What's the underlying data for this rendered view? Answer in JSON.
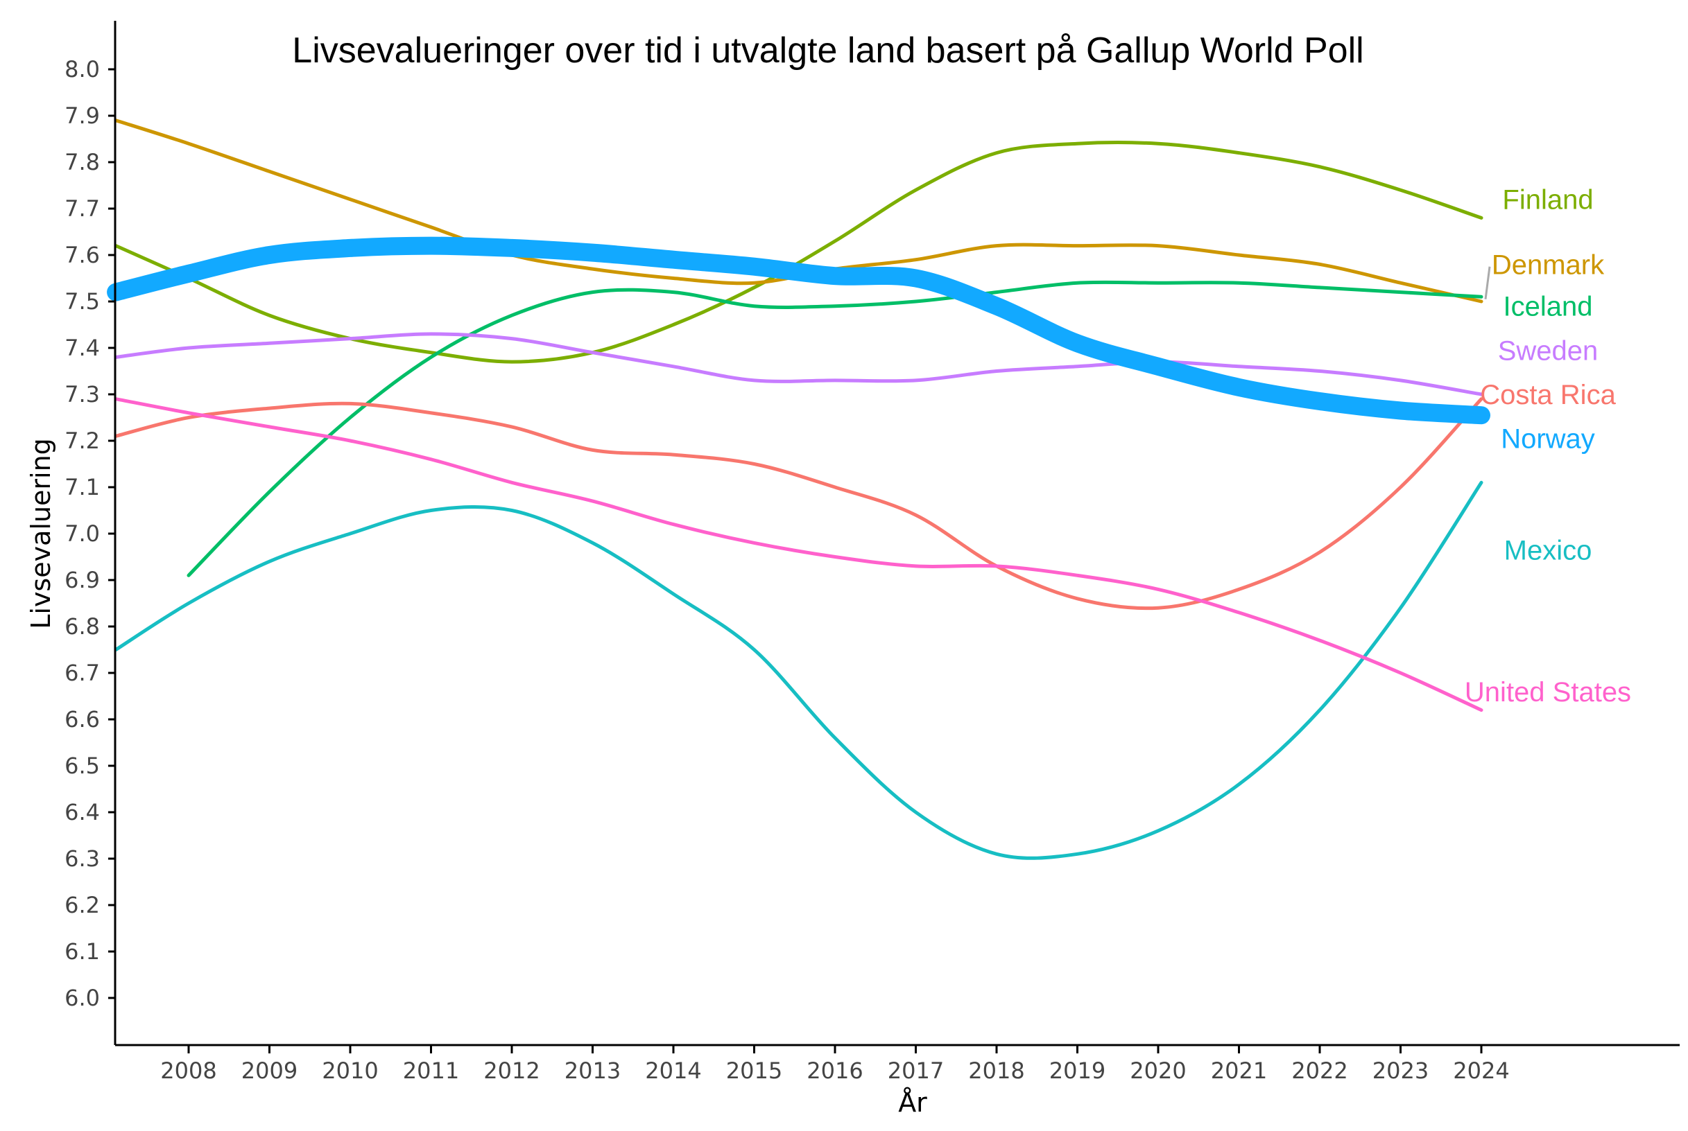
{
  "chart_data": {
    "type": "line",
    "title": "Livsevalueringer over tid i utvalgte land basert på Gallup World Poll",
    "xlabel": "År",
    "ylabel": "Livsevaluering",
    "ylim": [
      5.9,
      8.1
    ],
    "xlim": [
      2007.1,
      2026.5
    ],
    "grid": false,
    "x_ticks": [
      "2008",
      "2009",
      "2010",
      "2011",
      "2012",
      "2013",
      "2014",
      "2015",
      "2016",
      "2017",
      "2018",
      "2019",
      "2020",
      "2021",
      "2022",
      "2023",
      "2024"
    ],
    "y_ticks": [
      "6.0",
      "6.1",
      "6.2",
      "6.3",
      "6.4",
      "6.5",
      "6.6",
      "6.7",
      "6.8",
      "6.9",
      "7.0",
      "7.1",
      "7.2",
      "7.3",
      "7.4",
      "7.5",
      "7.6",
      "7.7",
      "7.8",
      "7.9",
      "8.0"
    ],
    "legend": "direct labels at right end of lines",
    "series": [
      {
        "name": "Finland",
        "color": "#7CAE00",
        "width": 5,
        "x": [
          2007.1,
          2008,
          2009,
          2010,
          2011,
          2012,
          2013,
          2014,
          2015,
          2016,
          2017,
          2018,
          2019,
          2020,
          2021,
          2022,
          2023,
          2024
        ],
        "y": [
          7.62,
          7.55,
          7.47,
          7.42,
          7.39,
          7.37,
          7.39,
          7.45,
          7.53,
          7.63,
          7.74,
          7.82,
          7.84,
          7.84,
          7.82,
          7.79,
          7.74,
          7.68
        ]
      },
      {
        "name": "Denmark",
        "color": "#CD9600",
        "width": 5,
        "x": [
          2007.1,
          2008,
          2009,
          2010,
          2011,
          2012,
          2013,
          2014,
          2015,
          2016,
          2017,
          2018,
          2019,
          2020,
          2021,
          2022,
          2023,
          2024
        ],
        "y": [
          7.89,
          7.84,
          7.78,
          7.72,
          7.66,
          7.6,
          7.57,
          7.55,
          7.54,
          7.57,
          7.59,
          7.62,
          7.62,
          7.62,
          7.6,
          7.58,
          7.54,
          7.5
        ]
      },
      {
        "name": "Iceland",
        "color": "#00BE67",
        "width": 5,
        "x": [
          2008,
          2009,
          2010,
          2011,
          2012,
          2013,
          2014,
          2015,
          2016,
          2017,
          2018,
          2019,
          2020,
          2021,
          2022,
          2023,
          2024
        ],
        "y": [
          6.91,
          7.09,
          7.25,
          7.38,
          7.47,
          7.52,
          7.52,
          7.49,
          7.49,
          7.5,
          7.52,
          7.54,
          7.54,
          7.54,
          7.53,
          7.52,
          7.51
        ]
      },
      {
        "name": "Sweden",
        "color": "#C77CFF",
        "width": 5,
        "x": [
          2007.1,
          2008,
          2009,
          2010,
          2011,
          2012,
          2013,
          2014,
          2015,
          2016,
          2017,
          2018,
          2019,
          2020,
          2021,
          2022,
          2023,
          2024
        ],
        "y": [
          7.38,
          7.4,
          7.41,
          7.42,
          7.43,
          7.42,
          7.39,
          7.36,
          7.33,
          7.33,
          7.33,
          7.35,
          7.36,
          7.37,
          7.36,
          7.35,
          7.33,
          7.3
        ]
      },
      {
        "name": "Costa Rica",
        "color": "#F8766D",
        "width": 5,
        "x": [
          2007.1,
          2008,
          2009,
          2010,
          2011,
          2012,
          2013,
          2014,
          2015,
          2016,
          2017,
          2018,
          2019,
          2020,
          2021,
          2022,
          2023,
          2024
        ],
        "y": [
          7.21,
          7.25,
          7.27,
          7.28,
          7.26,
          7.23,
          7.18,
          7.17,
          7.15,
          7.1,
          7.04,
          6.93,
          6.86,
          6.84,
          6.88,
          6.96,
          7.1,
          7.29
        ]
      },
      {
        "name": "Norway",
        "color": "#12A9FF",
        "width": 26,
        "x": [
          2007.1,
          2008,
          2009,
          2010,
          2011,
          2012,
          2013,
          2014,
          2015,
          2016,
          2017,
          2018,
          2019,
          2020,
          2021,
          2022,
          2023,
          2024
        ],
        "y": [
          7.52,
          7.56,
          7.6,
          7.615,
          7.62,
          7.615,
          7.605,
          7.59,
          7.575,
          7.555,
          7.55,
          7.49,
          7.41,
          7.36,
          7.315,
          7.285,
          7.265,
          7.255
        ]
      },
      {
        "name": "Mexico",
        "color": "#17BEC3",
        "width": 5,
        "x": [
          2007.1,
          2008,
          2009,
          2010,
          2011,
          2012,
          2013,
          2014,
          2015,
          2016,
          2017,
          2018,
          2019,
          2020,
          2021,
          2022,
          2023,
          2024
        ],
        "y": [
          6.75,
          6.85,
          6.94,
          7.0,
          7.05,
          7.05,
          6.98,
          6.87,
          6.75,
          6.56,
          6.4,
          6.31,
          6.31,
          6.36,
          6.46,
          6.62,
          6.84,
          7.11
        ]
      },
      {
        "name": "United States",
        "color": "#FF61CC",
        "width": 5,
        "x": [
          2007.1,
          2008,
          2009,
          2010,
          2011,
          2012,
          2013,
          2014,
          2015,
          2016,
          2017,
          2018,
          2019,
          2020,
          2021,
          2022,
          2023,
          2024
        ],
        "y": [
          7.29,
          7.26,
          7.23,
          7.2,
          7.16,
          7.11,
          7.07,
          7.02,
          6.98,
          6.95,
          6.93,
          6.93,
          6.91,
          6.88,
          6.83,
          6.77,
          6.7,
          6.62
        ]
      }
    ],
    "labels": [
      {
        "text": "Finland",
        "color": "#7CAE00",
        "y": 7.72
      },
      {
        "text": "Denmark",
        "color": "#CD9600",
        "y": 7.58
      },
      {
        "text": "Iceland",
        "color": "#00BE67",
        "y": 7.49
      },
      {
        "text": "Sweden",
        "color": "#C77CFF",
        "y": 7.395
      },
      {
        "text": "Costa Rica",
        "color": "#F8766D",
        "y": 7.3
      },
      {
        "text": "Norway",
        "color": "#12A9FF",
        "y": 7.205
      },
      {
        "text": "Mexico",
        "color": "#17BEC3",
        "y": 6.965
      },
      {
        "text": "United States",
        "color": "#FF61CC",
        "y": 6.66
      }
    ]
  }
}
